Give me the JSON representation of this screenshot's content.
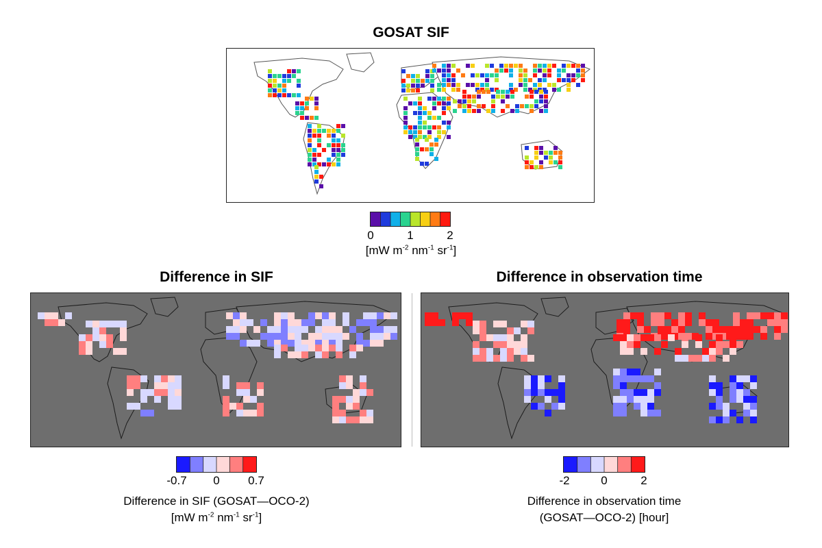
{
  "panels": {
    "gosat": {
      "title": "GOSAT SIF",
      "colorbar": {
        "colors": [
          "#5a0fa8",
          "#1f3bdc",
          "#10b0e8",
          "#2ad38f",
          "#b9e52a",
          "#f7cf14",
          "#ff7b14",
          "#ff1a10"
        ],
        "ticks": [
          "0",
          "1",
          "2"
        ],
        "unit_main": "[mW m",
        "unit_sup1": "-2",
        "unit_mid1": " nm",
        "unit_sup2": "-1",
        "unit_mid2": " sr",
        "unit_sup3": "-1",
        "unit_end": "]"
      }
    },
    "sif_diff": {
      "title": "Difference in SIF",
      "colorbar": {
        "colors": [
          "#1a1aff",
          "#7f7fff",
          "#d8d8ff",
          "#ffd8d8",
          "#ff7f7f",
          "#ff1a1a"
        ],
        "ticks": [
          "-0.7",
          "0",
          "0.7"
        ],
        "label_line1": "Difference in SIF (GOSAT—OCO-2)",
        "unit_main": "[mW m",
        "unit_sup1": "-2",
        "unit_mid1": " nm",
        "unit_sup2": "-1",
        "unit_mid2": " sr",
        "unit_sup3": "-1",
        "unit_end": "]"
      }
    },
    "time_diff": {
      "title": "Difference in observation time",
      "colorbar": {
        "colors": [
          "#1a1aff",
          "#7f7fff",
          "#d8d8ff",
          "#ffd8d8",
          "#ff7f7f",
          "#ff1a1a"
        ],
        "ticks": [
          "-2",
          "0",
          "2"
        ],
        "label_line1": "Difference in observation time",
        "label_line2": "(GOSAT—OCO-2) [hour]"
      }
    }
  },
  "map_colors": {
    "ocean_top": "#ffffff",
    "ocean_bottom": "#7a7a7a",
    "coast": "#555555"
  }
}
